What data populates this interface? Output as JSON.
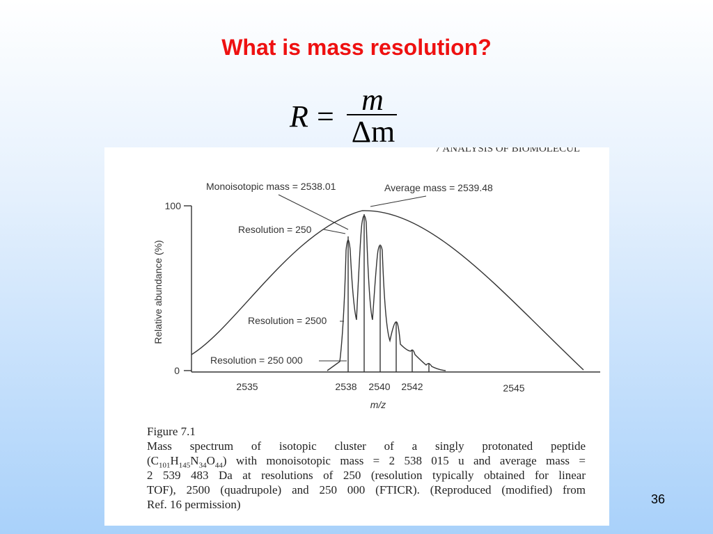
{
  "title": "What is mass resolution?",
  "formula": {
    "lhs": "R",
    "equals": "=",
    "numerator": "m",
    "denominator": "Δm"
  },
  "figure": {
    "header": "7 ANALYSIS OF BIOMOLECUL",
    "annotations": [
      "Monoisotopic mass = 2538.01",
      "Average mass = 2539.48",
      "Resolution = 250",
      "Resolution = 2500",
      "Resolution = 250 000"
    ],
    "y_axis_label": "Relative abundance (%)",
    "y_ticks": [
      "100",
      "0"
    ],
    "x_ticks": [
      "2535",
      "2538",
      "2540",
      "2542",
      "2545"
    ],
    "x_axis_label": "m/z",
    "caption_title": "Figure 7.1",
    "caption_line1": "Mass spectrum of isotopic cluster of a singly protonated peptide",
    "caption_line2": [
      "(C",
      "101",
      "H",
      "145",
      "N",
      "34",
      "O",
      "44",
      ") with monoisotopic mass = 2 538 015 u and average mass ="
    ],
    "caption_line3": "2 539 483 Da at resolutions of 250 (resolution typically obtained for linear",
    "caption_line4": "TOF), 2500 (quadrupole) and 250 000 (FTICR). (Reproduced (modified) from",
    "caption_line5": "Ref. 16 permission)"
  },
  "page_number": "36"
}
